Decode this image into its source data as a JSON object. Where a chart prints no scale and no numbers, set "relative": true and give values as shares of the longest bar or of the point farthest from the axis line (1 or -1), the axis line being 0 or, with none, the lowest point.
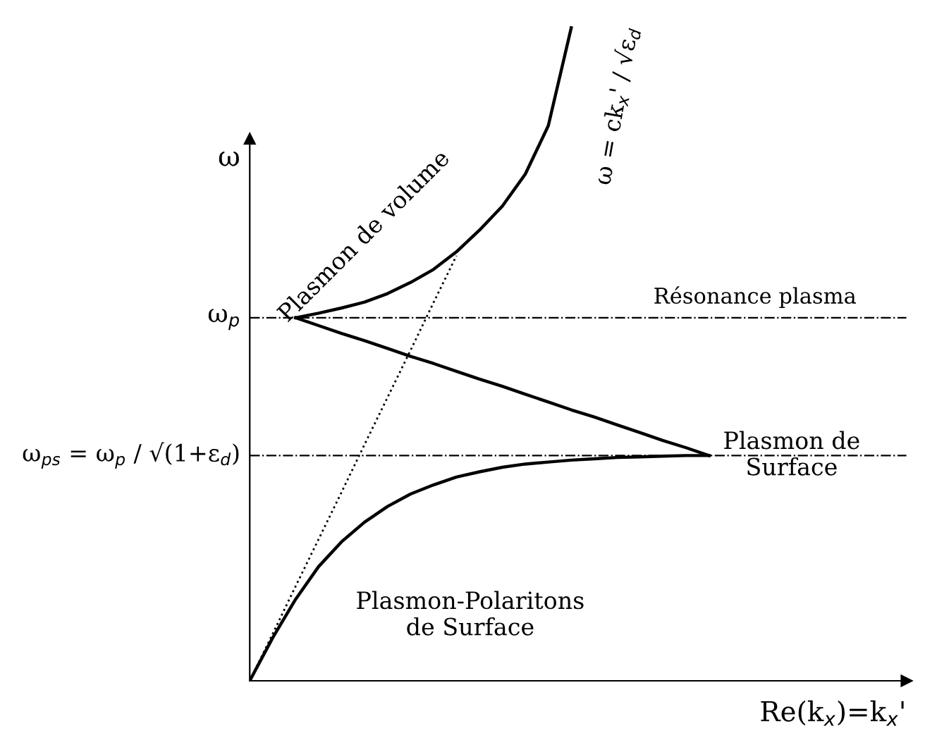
{
  "chart_data": {
    "type": "line",
    "relative": true,
    "xlabel": "Re(k$_{x}$)=k$_{x}$'",
    "ylabel": "ω",
    "line_style": "solid",
    "marker": "none",
    "legend": false,
    "categories": [
      null,
      null,
      null,
      null,
      null,
      null,
      null,
      null,
      null,
      null,
      null,
      null,
      null,
      null,
      null,
      null,
      null,
      null,
      null,
      null,
      null
    ],
    "series": [
      {
        "color": "#000000",
        "values": [
          null,
          null,
          0.556,
          0.563,
          0.571,
          0.58,
          0.593,
          0.61,
          0.63,
          0.657,
          0.69,
          0.727,
          0.776,
          0.85,
          1.0,
          null,
          null,
          null,
          null,
          null,
          null
        ]
      },
      {
        "color": "#000000",
        "values": [
          0,
          0.066,
          0.125,
          0.175,
          0.213,
          0.243,
          0.267,
          0.286,
          0.3,
          0.312,
          0.32,
          0.327,
          0.332,
          0.335,
          0.338,
          0.34,
          0.342,
          0.343,
          0.344,
          0.345,
          0.345
        ]
      },
      {
        "color": "#000000",
        "values": [
          null,
          null,
          0.556,
          0.544,
          0.532,
          0.521,
          0.509,
          0.497,
          0.486,
          0.474,
          0.462,
          0.451,
          0.439,
          0.427,
          0.415,
          0.404,
          0.392,
          0.38,
          0.368,
          0.357,
          0.345
        ]
      },
      {
        "color": "#000000",
        "line_style": "dotted",
        "values": [
          0,
          0.072,
          0.145,
          0.217,
          0.289,
          0.362,
          0.434,
          0.506,
          0.579,
          0.651,
          null,
          null,
          null,
          null,
          null,
          null,
          null,
          null,
          null,
          null,
          null
        ]
      }
    ],
    "ref_lines": [
      {
        "axis": "y",
        "value": 0.556,
        "label": "Résonance plasma",
        "color": "#000000",
        "line_style": "dashdot"
      },
      {
        "axis": "y",
        "value": 0.345,
        "color": "#000000",
        "line_style": "dashdot"
      }
    ],
    "annotations": [
      "ω$_{p}$",
      "ω$_{ps}$ = ω$_{p}$ / √(1+ε$_{d}$)",
      "Plasmon de volume",
      "Plasmon de\nSurface",
      "Plasmon-Polaritons\nde Surface",
      "ω = ck$_{x}$' / √ε$_{d}$"
    ]
  }
}
